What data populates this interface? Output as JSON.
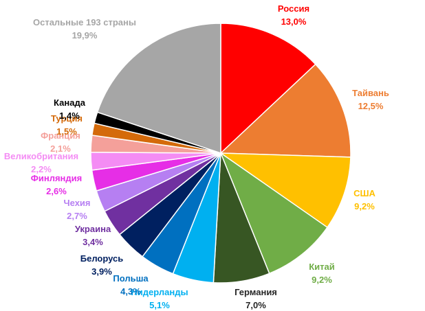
{
  "chart_data": {
    "type": "pie",
    "start_angle_deg": 0,
    "direction": "clockwise",
    "slices": [
      {
        "label": "Россия",
        "value": 13.0,
        "value_text": "13,0%",
        "color": "#ff0000"
      },
      {
        "label": "Тайвань",
        "value": 12.5,
        "value_text": "12,5%",
        "color": "#ed7d31"
      },
      {
        "label": "США",
        "value": 9.2,
        "value_text": "9,2%",
        "color": "#ffc000"
      },
      {
        "label": "Китай",
        "value": 9.2,
        "value_text": "9,2%",
        "color": "#70ad47"
      },
      {
        "label": "Германия",
        "value": 7.0,
        "value_text": "7,0%",
        "color": "#375623"
      },
      {
        "label": "Нидерланды",
        "value": 5.1,
        "value_text": "5,1%",
        "color": "#00b0f0"
      },
      {
        "label": "Польша",
        "value": 4.3,
        "value_text": "4,3%",
        "color": "#0070c0"
      },
      {
        "label": "Белорусь",
        "value": 3.9,
        "value_text": "3,9%",
        "color": "#002060"
      },
      {
        "label": "Украина",
        "value": 3.4,
        "value_text": "3,4%",
        "color": "#7030a0"
      },
      {
        "label": "Чехия",
        "value": 2.7,
        "value_text": "2,7%",
        "color": "#b67ff2"
      },
      {
        "label": "Финляндия",
        "value": 2.6,
        "value_text": "2,6%",
        "color": "#e62ee6"
      },
      {
        "label": "Великобритания",
        "value": 2.2,
        "value_text": "2,2%",
        "color": "#f48cf4"
      },
      {
        "label": "Франция",
        "value": 2.1,
        "value_text": "2,1%",
        "color": "#f4a09a"
      },
      {
        "label": "Турция",
        "value": 1.5,
        "value_text": "1,5%",
        "color": "#d46a0a"
      },
      {
        "label": "Канада",
        "value": 1.4,
        "value_text": "1,4%",
        "color": "#000000"
      },
      {
        "label": "Остальные 193 страны",
        "value": 19.9,
        "value_text": "19,9%",
        "color": "#a6a6a6"
      }
    ]
  }
}
